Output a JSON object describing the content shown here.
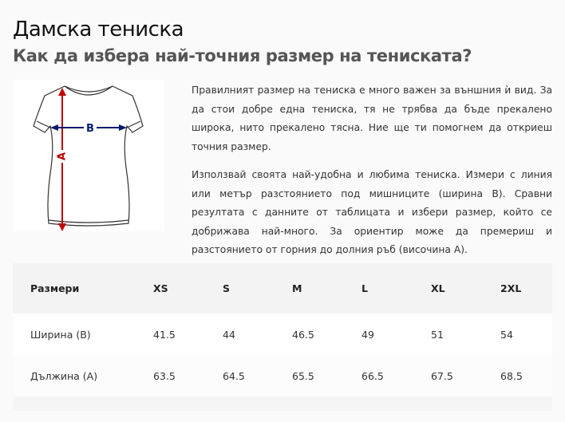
{
  "title": "Дамска тениска",
  "subtitle": "Как да избера най-точния размер на тениската?",
  "image": {
    "label_a": "A",
    "label_b": "B",
    "colors": {
      "a_arrow": "#c00000",
      "b_arrow": "#0a1a6e"
    }
  },
  "paragraphs": [
    "Правилният размер на тениска е много важен за външния ѝ вид. За да стои добре една тениска, тя не трябва да бъде прекалено широка, нито прекалено тясна. Ние ще ти помогнем да откриеш точния размер.",
    "Използвай своята най-удобна и любима тениска. Измери с линия или метър разстоянието под мишниците (ширина B). Сравни резултата с данните от таблицата и избери размер, който се добрижава най-много. За ориентир може да премериш и разстоянието от горния до долния ръб (височина А)."
  ],
  "table": {
    "headers": [
      "Размери",
      "XS",
      "S",
      "M",
      "L",
      "XL",
      "2XL"
    ],
    "rows": [
      [
        "Ширина (B)",
        "41.5",
        "44",
        "46.5",
        "49",
        "51",
        "54"
      ],
      [
        "Дължина (А)",
        "63.5",
        "64.5",
        "65.5",
        "66.5",
        "67.5",
        "68.5"
      ]
    ]
  }
}
